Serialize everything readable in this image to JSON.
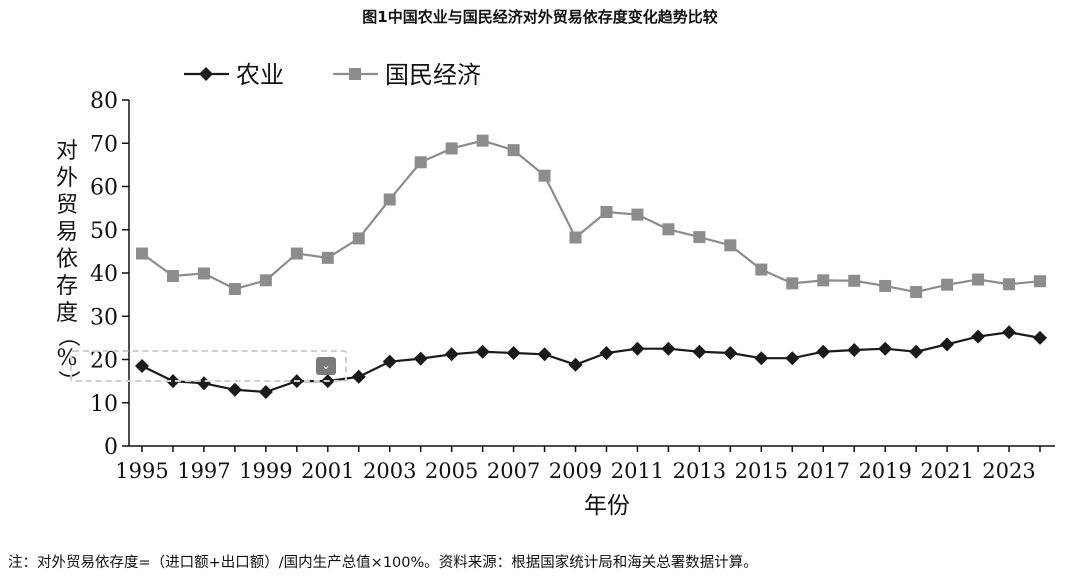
{
  "title": "图1中国农业与国民经济对外贸易依存度变化趋势比较",
  "footnote": "注：对外贸易依存度=（进口额+出口额）/国内生产总值×100%。资料来源：根据国家统计局和海关总署数据计算。",
  "ylabel_chars": [
    "对",
    "外",
    "贸",
    "易",
    "依",
    "存",
    "度"
  ],
  "ylabel_unit": "%",
  "paren_open": "（",
  "paren_close": "）",
  "selection_icon": "chevron-down-icon",
  "colors": {
    "agriculture": "#1a1a1a",
    "economy": "#8c8c8c",
    "axis": "#111111"
  },
  "chart_data": {
    "type": "line",
    "title": "图1中国农业与国民经济对外贸易依存度变化趋势比较",
    "xlabel": "年份",
    "ylabel": "对外贸易依存度（%）",
    "ylim": [
      0,
      80
    ],
    "yticks": [
      0,
      10,
      20,
      30,
      40,
      50,
      60,
      70,
      80
    ],
    "xticks": [
      1995,
      1997,
      1999,
      2001,
      2003,
      2005,
      2007,
      2009,
      2011,
      2013,
      2015,
      2017,
      2019,
      2021,
      2023
    ],
    "x": [
      1995,
      1996,
      1997,
      1998,
      1999,
      2000,
      2001,
      2002,
      2003,
      2004,
      2005,
      2006,
      2007,
      2008,
      2009,
      2010,
      2011,
      2012,
      2013,
      2014,
      2015,
      2016,
      2017,
      2018,
      2019,
      2020,
      2021,
      2022,
      2023,
      2024
    ],
    "legend_position": "top-left",
    "grid": false,
    "series": [
      {
        "name": "农业",
        "marker": "diamond",
        "color": "#1a1a1a",
        "values": [
          18.5,
          15.0,
          14.5,
          13.0,
          12.5,
          15.0,
          15.0,
          16.0,
          19.5,
          20.2,
          21.2,
          21.8,
          21.5,
          21.2,
          18.8,
          21.5,
          22.5,
          22.5,
          21.8,
          21.5,
          20.3,
          20.3,
          21.8,
          22.2,
          22.5,
          21.8,
          23.5,
          25.3,
          26.3,
          25.0
        ]
      },
      {
        "name": "国民经济",
        "marker": "square",
        "color": "#8c8c8c",
        "values": [
          44.5,
          39.3,
          39.9,
          36.3,
          38.3,
          44.5,
          43.5,
          48.0,
          57.0,
          65.6,
          68.8,
          70.6,
          68.4,
          62.5,
          48.2,
          54.1,
          53.5,
          50.1,
          48.3,
          46.4,
          40.8,
          37.6,
          38.3,
          38.2,
          37.0,
          35.6,
          37.3,
          38.5,
          37.4,
          38.1
        ]
      }
    ]
  }
}
